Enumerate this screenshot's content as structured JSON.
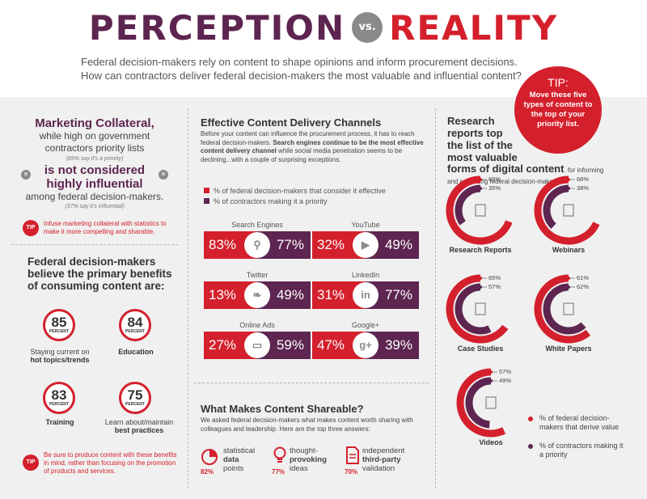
{
  "header": {
    "title_left": "PERCEPTION",
    "title_vs": "vs.",
    "title_right": "REALITY",
    "subtitle_line1": "Federal decision-makers rely on content to shape opinions and inform procurement decisions.",
    "subtitle_line2": "How can contractors deliver federal decision-makers the most valuable and influential content?"
  },
  "tip_badge": {
    "title": "TIP:",
    "text": "Move these five types of content to the top of your priority list."
  },
  "marketing": {
    "line1": "Marketing Collateral,",
    "line2": "while high on government",
    "line3": "contractors priority lists",
    "note1": "(69% say it's a priority)",
    "line4": "is not considered",
    "line5": "highly influential",
    "line6": "among federal decision-makers.",
    "note2": "(37% say it's influential)",
    "tip_label": "TIP",
    "tip_text": "Infuse marketing collateral with statistics to make it more compelling and sharable."
  },
  "benefits": {
    "heading": "Federal decision-makers believe the primary benefits of consuming content are:",
    "percent_label": "PERCENT",
    "items": [
      {
        "value": "85",
        "label1": "Staying current on",
        "label2": "hot topics/trends"
      },
      {
        "value": "84",
        "label1": "",
        "label2": "Education"
      },
      {
        "value": "83",
        "label1": "",
        "label2": "Training"
      },
      {
        "value": "75",
        "label1": "Learn about/maintain",
        "label2": "best practices"
      }
    ],
    "tip_label": "TIP",
    "tip_text": "Be sure to produce content with these benefits in mind, rather than focusing on the promotion of products and services."
  },
  "channels": {
    "heading": "Effective Content Delivery Channels",
    "intro": "Before your content can influence the procurement process, it has to reach federal decision-makers.",
    "intro_bold": "Search engines continue to be the most effective content delivery channel",
    "intro_end": "while social media penetration seems to be declining...with a couple of surprising exceptions.",
    "legend_red": "% of federal decision-makers that consider it effective",
    "legend_plum": "% of contractors making it a priority",
    "items": [
      {
        "name": "Search Engines",
        "left": "83%",
        "right": "77%",
        "icon": "search-icon",
        "glyph": "⚲"
      },
      {
        "name": "YouTube",
        "left": "32%",
        "right": "49%",
        "icon": "youtube-icon",
        "glyph": "▶"
      },
      {
        "name": "Twitter",
        "left": "13%",
        "right": "49%",
        "icon": "twitter-icon",
        "glyph": "❧"
      },
      {
        "name": "LinkedIn",
        "left": "31%",
        "right": "77%",
        "icon": "linkedin-icon",
        "glyph": "in"
      },
      {
        "name": "Online Ads",
        "left": "27%",
        "right": "59%",
        "icon": "laptop-icon",
        "glyph": "▭"
      },
      {
        "name": "Google+",
        "left": "47%",
        "right": "39%",
        "icon": "google-plus-icon",
        "glyph": "g+"
      }
    ],
    "colors": {
      "red": "#d4202c",
      "plum": "#5d2550"
    }
  },
  "shareable": {
    "heading": "What Makes Content Shareable?",
    "intro": "We asked federal decision-makers what makes content worth sharing with colleagues and leadership. Here are the top three answers:",
    "items": [
      {
        "pct": "82%",
        "l1": "statistical",
        "l2": "data",
        "l3": "points",
        "icon": "pie-chart-icon"
      },
      {
        "pct": "77%",
        "l1": "thought-",
        "l2": "provoking",
        "l3": "ideas",
        "icon": "lightbulb-icon"
      },
      {
        "pct": "70%",
        "l1": "independent",
        "l2": "third-party",
        "l3": "validation",
        "icon": "document-icon"
      }
    ]
  },
  "research": {
    "heading_line1": "Research",
    "heading_line2": "reports top",
    "heading_line3": "the list of the",
    "heading_line4": "most valuable",
    "heading_line5": "forms of digital content",
    "heading_end": "for informing and educating federal decision-makers.",
    "gauges": [
      {
        "label": "Research Reports",
        "fed": 69,
        "con": 35,
        "fed_text": "69%",
        "con_text": "35%",
        "icon": "report-icon"
      },
      {
        "label": "Webinars",
        "fed": 68,
        "con": 38,
        "fed_text": "68%",
        "con_text": "38%",
        "icon": "webinar-icon"
      },
      {
        "label": "Case Studies",
        "fed": 65,
        "con": 57,
        "fed_text": "65%",
        "con_text": "57%",
        "icon": "case-study-icon"
      },
      {
        "label": "White Papers",
        "fed": 61,
        "con": 62,
        "fed_text": "61%",
        "con_text": "62%",
        "icon": "white-paper-icon"
      },
      {
        "label": "Videos",
        "fed": 57,
        "con": 49,
        "fed_text": "57%",
        "con_text": "49%",
        "icon": "video-camera-icon"
      }
    ],
    "legend_red": "% of federal decision-makers that derive value",
    "legend_plum": "% of contractors making it a priority"
  }
}
